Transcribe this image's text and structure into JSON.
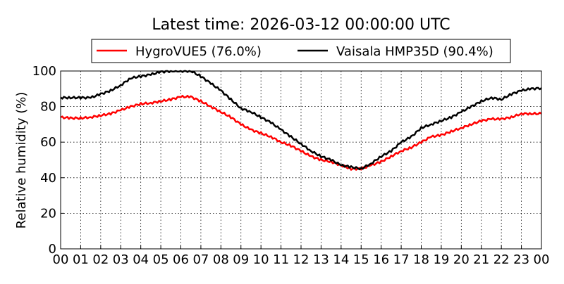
{
  "chart_data": {
    "type": "line",
    "title": "Latest time: 2026-03-12 00:00:00 UTC",
    "xlabel": "",
    "ylabel": "Relative humidity (%)",
    "ylim": [
      0,
      100
    ],
    "xlim": [
      0,
      24
    ],
    "grid": true,
    "legend_placement": "top-center",
    "x_tick_labels": [
      "00",
      "01",
      "02",
      "03",
      "04",
      "05",
      "06",
      "07",
      "08",
      "09",
      "10",
      "11",
      "12",
      "13",
      "14",
      "15",
      "16",
      "17",
      "18",
      "19",
      "20",
      "21",
      "22",
      "23",
      "00"
    ],
    "y_ticks": [
      0,
      20,
      40,
      60,
      80,
      100
    ],
    "x": [
      0,
      0.5,
      1,
      1.5,
      2,
      2.5,
      3,
      3.5,
      4,
      4.5,
      5,
      5.5,
      6,
      6.5,
      7,
      7.5,
      8,
      8.5,
      9,
      9.5,
      10,
      10.5,
      11,
      11.5,
      12,
      12.5,
      13,
      13.5,
      14,
      14.5,
      15,
      15.5,
      16,
      16.5,
      17,
      17.5,
      18,
      18.5,
      19,
      19.5,
      20,
      20.5,
      21,
      21.5,
      22,
      22.5,
      23,
      23.5,
      24
    ],
    "series": [
      {
        "name": "HygroVUE5 (76.0%)",
        "color": "#ff0000",
        "values": [
          74,
          73.5,
          73.5,
          74,
          75,
          76,
          78,
          80,
          81.5,
          82,
          83,
          84,
          85.5,
          85.5,
          83,
          80,
          77,
          74,
          70,
          67,
          65,
          63,
          60,
          58,
          55,
          52,
          50,
          49,
          47,
          45,
          45,
          47,
          49,
          52,
          55,
          57,
          60,
          63,
          64,
          66,
          68,
          70,
          72,
          73,
          73,
          74,
          76,
          76,
          76
        ]
      },
      {
        "name": "Vaisala HMP35D (90.4%)",
        "color": "#000000",
        "values": [
          85,
          85,
          85,
          85,
          87,
          89,
          92,
          96,
          97,
          98,
          99.5,
          100,
          100,
          100,
          97,
          93,
          89,
          84,
          79,
          77,
          74,
          71,
          67,
          63,
          59,
          55,
          52,
          50,
          47,
          46,
          45,
          48,
          52,
          55,
          60,
          63,
          68,
          70,
          72,
          74,
          77,
          80,
          83,
          85,
          84,
          87,
          89,
          90,
          90.4
        ]
      }
    ]
  }
}
